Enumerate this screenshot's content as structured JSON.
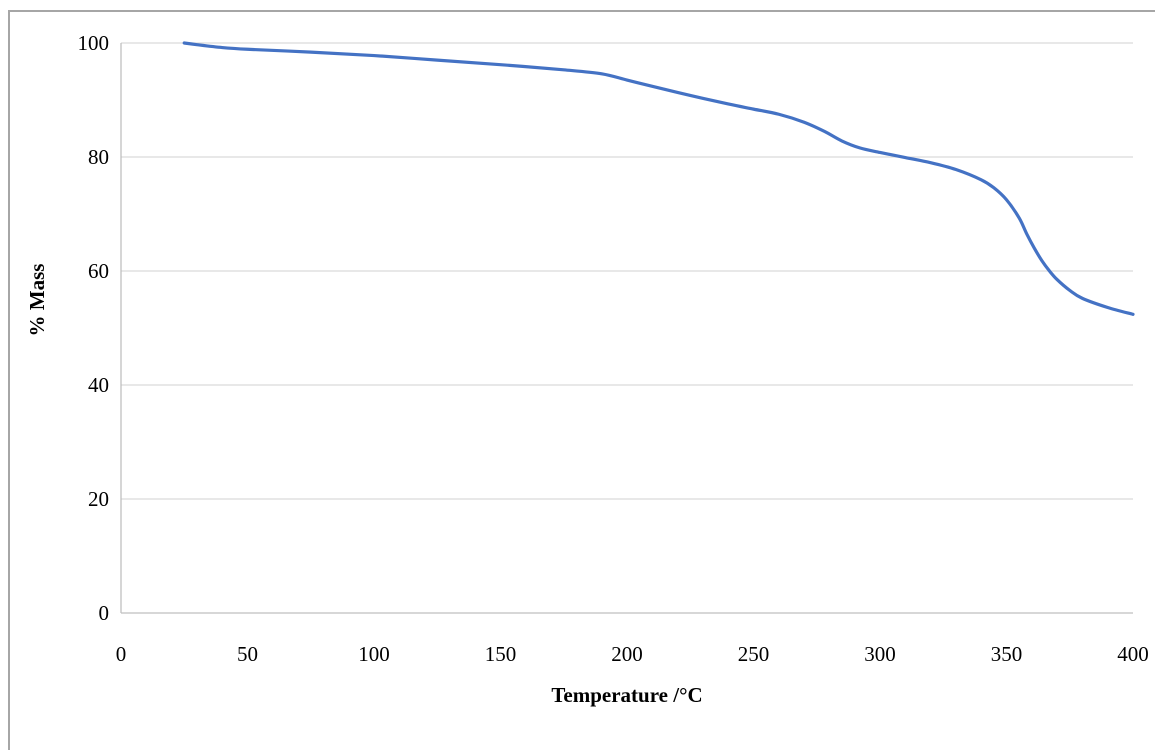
{
  "chart_data": {
    "type": "line",
    "title": "",
    "xlabel": "Temperature /°C",
    "ylabel": "% Mass",
    "xlim": [
      0,
      400
    ],
    "ylim": [
      0,
      100
    ],
    "x_ticks": [
      0,
      50,
      100,
      150,
      200,
      250,
      300,
      350,
      400
    ],
    "y_ticks": [
      0,
      20,
      40,
      60,
      80,
      100
    ],
    "grid": "horizontal",
    "legend": "none",
    "series": [
      {
        "color": "#4472c4",
        "x": [
          25,
          30,
          40,
          50,
          75,
          100,
          125,
          150,
          175,
          190,
          200,
          210,
          225,
          240,
          250,
          260,
          270,
          278,
          285,
          292,
          300,
          310,
          320,
          330,
          340,
          345,
          350,
          355,
          358,
          361,
          364,
          367,
          370,
          375,
          380,
          390,
          400
        ],
        "y": [
          100,
          99.7,
          99.2,
          98.9,
          98.4,
          97.8,
          97.0,
          96.2,
          95.3,
          94.6,
          93.5,
          92.4,
          90.8,
          89.3,
          88.4,
          87.5,
          86.1,
          84.5,
          82.8,
          81.6,
          80.8,
          79.9,
          79.0,
          77.8,
          76.0,
          74.6,
          72.5,
          69.3,
          66.5,
          64.0,
          61.8,
          60.0,
          58.5,
          56.6,
          55.2,
          53.6,
          52.4
        ]
      }
    ]
  }
}
